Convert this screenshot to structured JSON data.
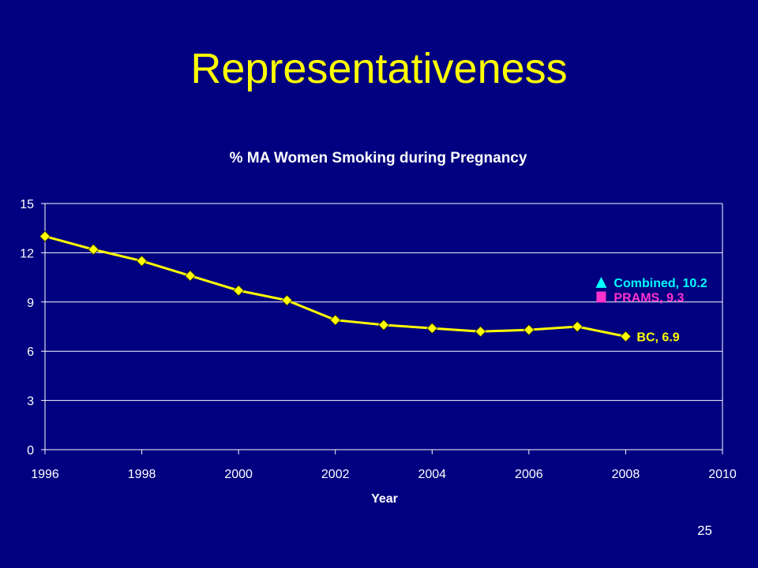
{
  "slide": {
    "title": "Representativeness",
    "page_number": "25"
  },
  "colors": {
    "background": "#000080",
    "title": "#FFFF00",
    "axis_text": "#FFFFFF",
    "gridline": "#FFFFFF",
    "series_bc": "#FFFF00",
    "series_combined": "#00FFFF",
    "series_prams": "#FF33CC"
  },
  "chart_data": {
    "type": "line",
    "title": "% MA Women Smoking during Pregnancy",
    "xlabel": "Year",
    "ylabel": "",
    "xlim": [
      1996,
      2010
    ],
    "ylim": [
      0,
      15
    ],
    "x_ticks": [
      1996,
      1998,
      2000,
      2002,
      2004,
      2006,
      2008,
      2010
    ],
    "y_ticks": [
      0,
      3,
      6,
      9,
      12,
      15
    ],
    "grid": "horizontal",
    "series": [
      {
        "name": "BC",
        "marker": "diamond",
        "x": [
          1996,
          1997,
          1998,
          1999,
          2000,
          2001,
          2002,
          2003,
          2004,
          2005,
          2006,
          2007,
          2008
        ],
        "values": [
          13.0,
          12.2,
          11.5,
          10.6,
          9.7,
          9.1,
          7.9,
          7.6,
          7.4,
          7.2,
          7.3,
          7.5,
          6.9
        ],
        "end_label": "BC, 6.9"
      },
      {
        "name": "Combined",
        "marker": "triangle",
        "x": [
          2008
        ],
        "values": [
          10.2
        ],
        "end_label": "Combined, 10.2"
      },
      {
        "name": "PRAMS",
        "marker": "square",
        "x": [
          2008
        ],
        "values": [
          9.3
        ],
        "end_label": "PRAMS, 9.3"
      }
    ]
  }
}
